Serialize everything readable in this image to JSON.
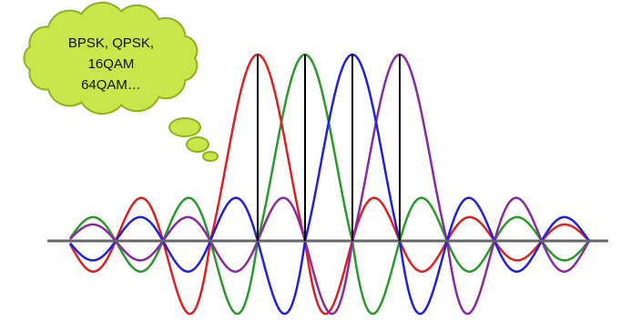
{
  "callout": {
    "lines": [
      "BPSK, QPSK,",
      "16QAM",
      "64QAM…"
    ]
  }
}
